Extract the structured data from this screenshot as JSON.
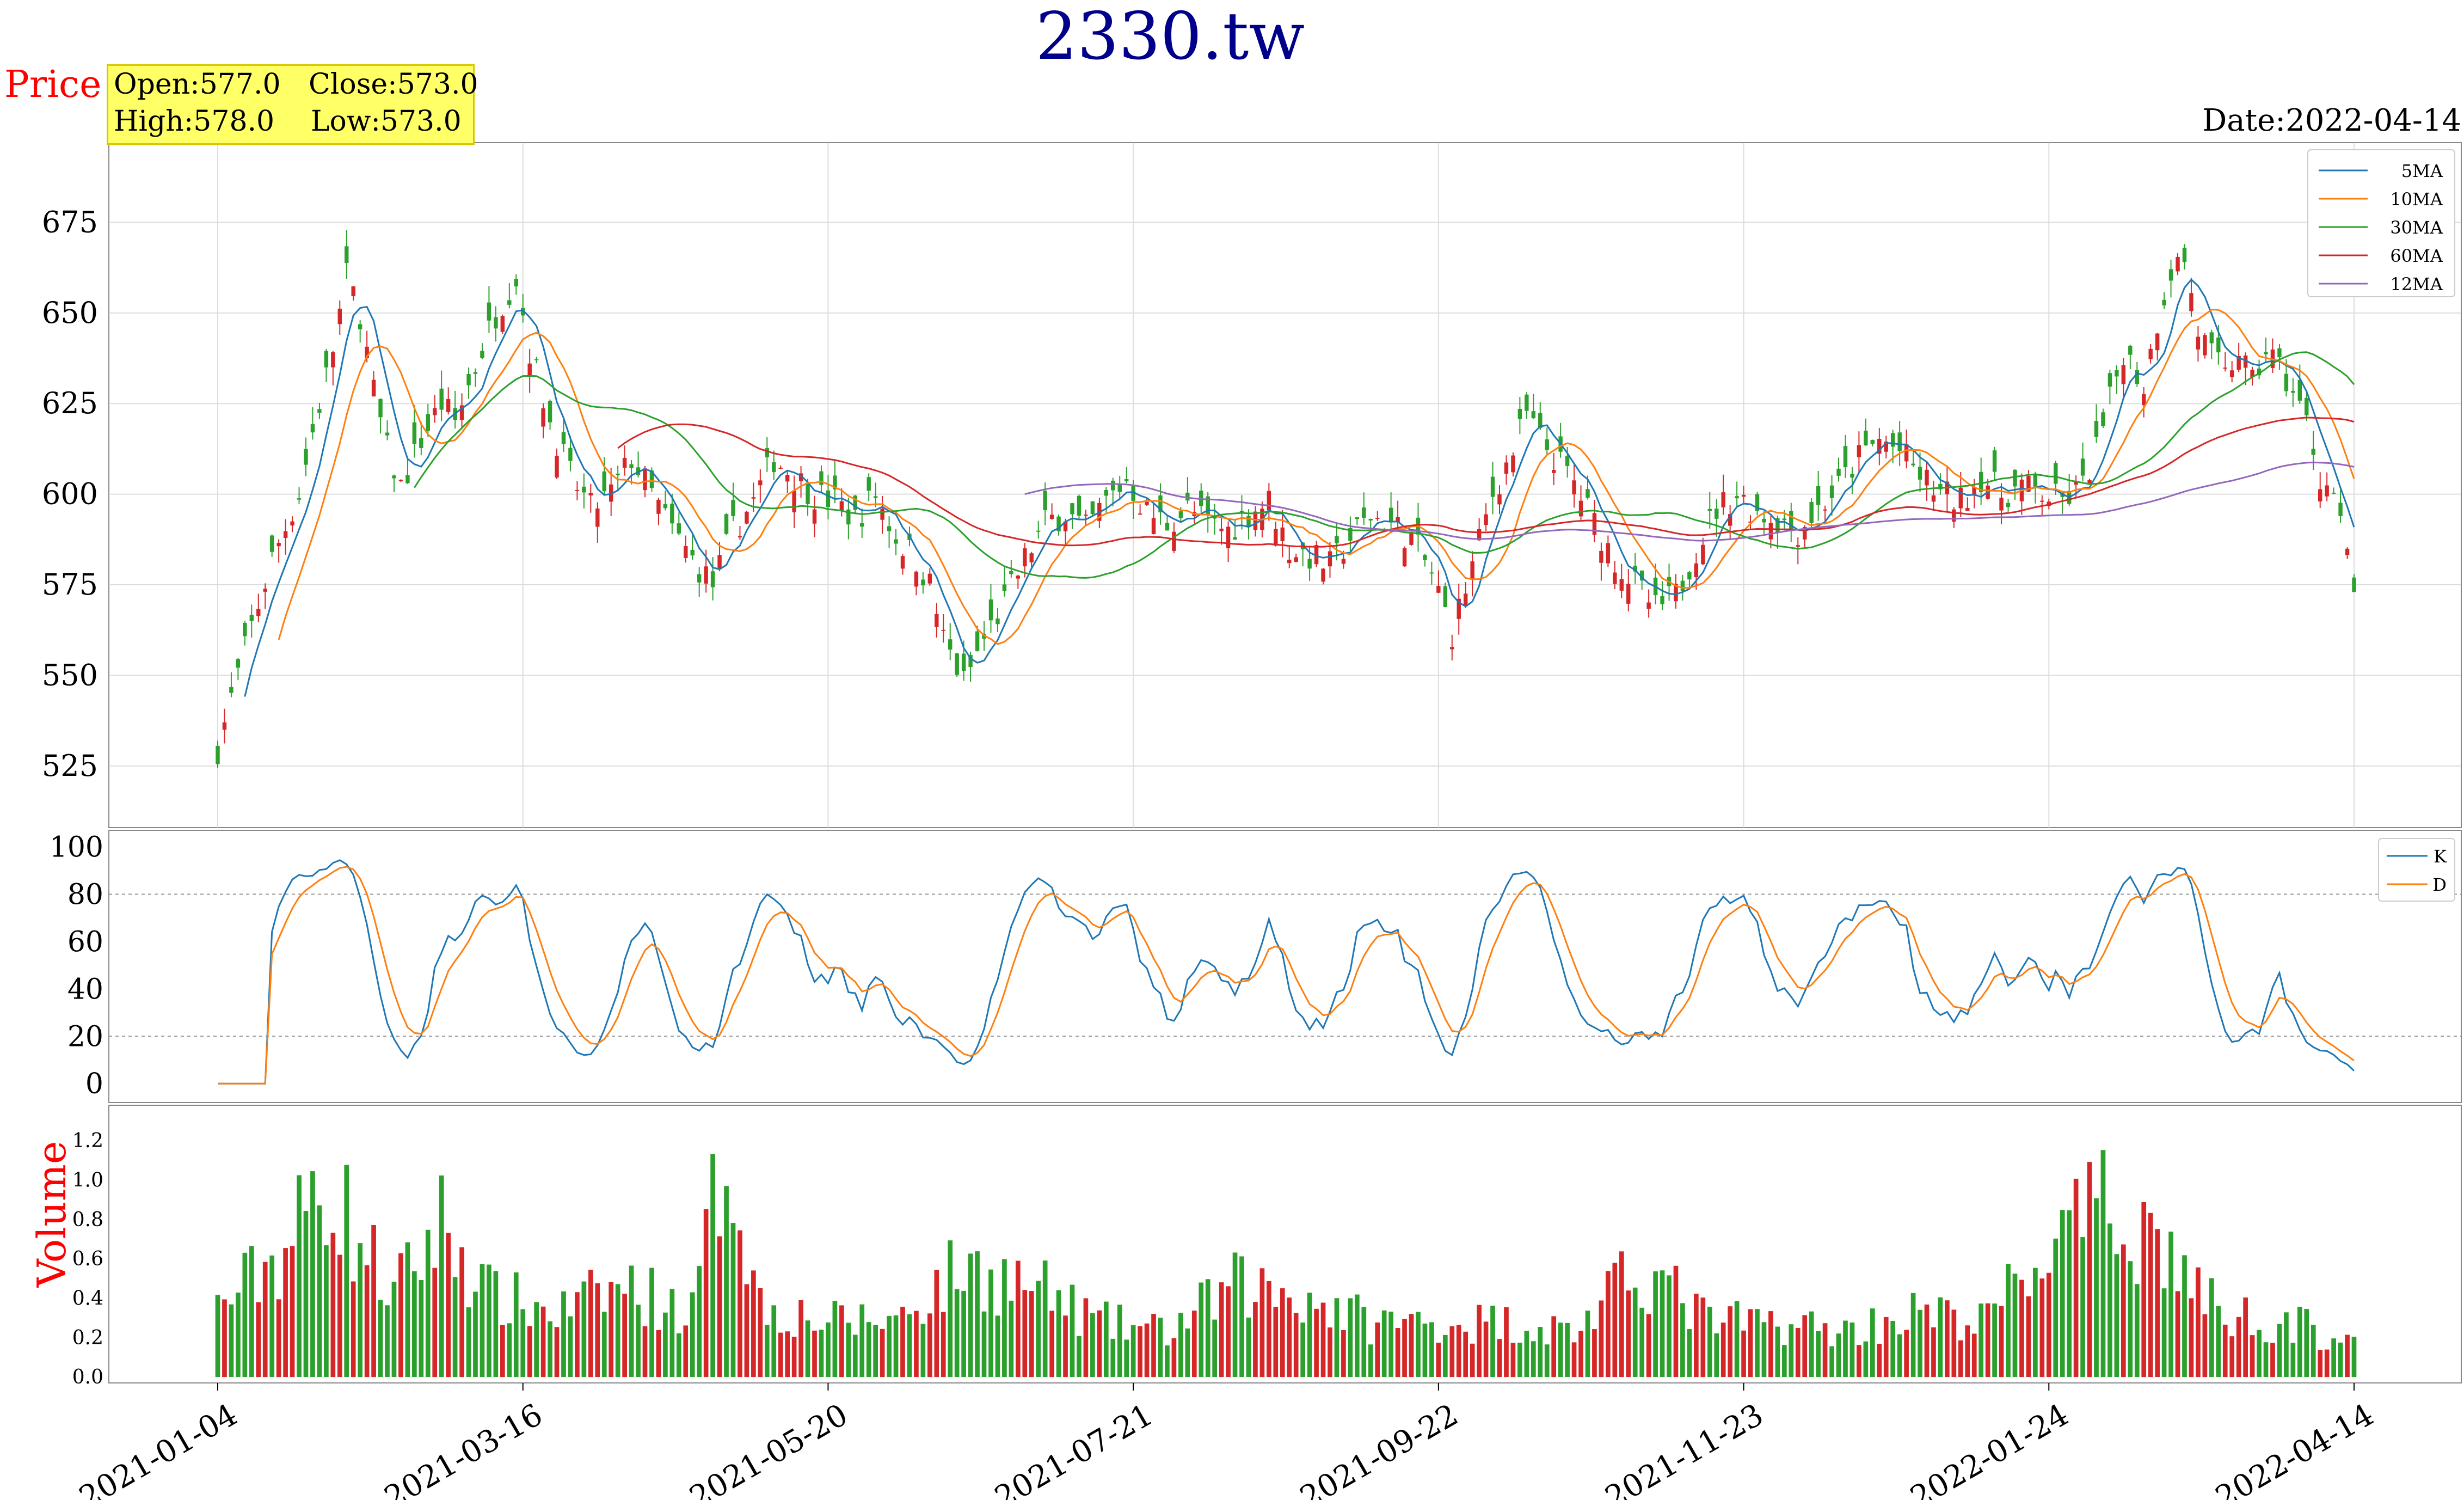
{
  "title": "2330.tw",
  "price_label": "Price",
  "volume_label": "Volume",
  "ohlc": {
    "open_label": "Open:577.0",
    "close_label": "Close:573.0",
    "high_label": "High:578.0",
    "low_label": "Low:573.0"
  },
  "date_label": "Date:2022-04-14",
  "colors": {
    "up": "#d62728",
    "down": "#2ca02c",
    "title": "#00008b",
    "axis_label": "#ff0000",
    "ma5": "#1f77b4",
    "ma10": "#ff7f0e",
    "ma30": "#2ca02c",
    "ma60": "#d62728",
    "ma120": "#9467bd",
    "k": "#1f77b4",
    "d": "#ff7f0e"
  },
  "chart_data": {
    "type": "line",
    "x_ticks": [
      "2021-01-04",
      "2021-03-16",
      "2021-05-20",
      "2021-07-21",
      "2021-09-22",
      "2021-11-23",
      "2022-01-24",
      "2022-04-14"
    ],
    "date_range": [
      "2021-01-04",
      "2022-04-14"
    ],
    "trading_days": 316,
    "price_panel": {
      "yticks": [
        525,
        550,
        575,
        600,
        625,
        650,
        675
      ],
      "ylim": [
        508,
        697
      ],
      "grid": true,
      "legend": [
        "5MA",
        "10MA",
        "30MA",
        "60MA",
        "12MA"
      ],
      "legend_position": "top-right",
      "close_anchors": [
        [
          0,
          530
        ],
        [
          4,
          557
        ],
        [
          8,
          582
        ],
        [
          12,
          600
        ],
        [
          14,
          617
        ],
        [
          17,
          640
        ],
        [
          19,
          660
        ],
        [
          21,
          650
        ],
        [
          23,
          628
        ],
        [
          25,
          612
        ],
        [
          27,
          602
        ],
        [
          30,
          615
        ],
        [
          33,
          625
        ],
        [
          35,
          620
        ],
        [
          38,
          635
        ],
        [
          41,
          650
        ],
        [
          44,
          660
        ],
        [
          46,
          640
        ],
        [
          49,
          620
        ],
        [
          52,
          605
        ],
        [
          55,
          596
        ],
        [
          58,
          600
        ],
        [
          61,
          610
        ],
        [
          64,
          600
        ],
        [
          67,
          590
        ],
        [
          70,
          582
        ],
        [
          73,
          575
        ],
        [
          76,
          590
        ],
        [
          79,
          598
        ],
        [
          82,
          610
        ],
        [
          85,
          605
        ],
        [
          88,
          600
        ],
        [
          91,
          598
        ],
        [
          94,
          593
        ],
        [
          97,
          600
        ],
        [
          100,
          588
        ],
        [
          103,
          582
        ],
        [
          105,
          575
        ],
        [
          107,
          560
        ],
        [
          110,
          548
        ],
        [
          113,
          560
        ],
        [
          116,
          570
        ],
        [
          119,
          582
        ],
        [
          122,
          592
        ],
        [
          125,
          595
        ],
        [
          128,
          590
        ],
        [
          131,
          598
        ],
        [
          134,
          604
        ],
        [
          137,
          595
        ],
        [
          140,
          592
        ],
        [
          143,
          596
        ],
        [
          146,
          592
        ],
        [
          149,
          590
        ],
        [
          152,
          595
        ],
        [
          155,
          598
        ],
        [
          158,
          585
        ],
        [
          161,
          583
        ],
        [
          164,
          580
        ],
        [
          167,
          588
        ],
        [
          170,
          594
        ],
        [
          173,
          592
        ],
        [
          176,
          588
        ],
        [
          179,
          578
        ],
        [
          182,
          562
        ],
        [
          185,
          580
        ],
        [
          188,
          600
        ],
        [
          191,
          612
        ],
        [
          193,
          622
        ],
        [
          195,
          615
        ],
        [
          198,
          608
        ],
        [
          200,
          603
        ],
        [
          203,
          592
        ],
        [
          206,
          582
        ],
        [
          209,
          575
        ],
        [
          212,
          568
        ],
        [
          215,
          572
        ],
        [
          218,
          585
        ],
        [
          221,
          596
        ],
        [
          224,
          600
        ],
        [
          227,
          595
        ],
        [
          230,
          593
        ],
        [
          233,
          590
        ],
        [
          236,
          596
        ],
        [
          239,
          602
        ],
        [
          242,
          610
        ],
        [
          245,
          615
        ],
        [
          248,
          612
        ],
        [
          251,
          605
        ],
        [
          254,
          600
        ],
        [
          257,
          598
        ],
        [
          260,
          605
        ],
        [
          263,
          600
        ],
        [
          266,
          602
        ],
        [
          269,
          600
        ],
        [
          272,
          598
        ],
        [
          275,
          602
        ],
        [
          278,
          618
        ],
        [
          281,
          640
        ],
        [
          284,
          630
        ],
        [
          286,
          648
        ],
        [
          288,
          662
        ],
        [
          290,
          665
        ],
        [
          292,
          645
        ],
        [
          294,
          638
        ],
        [
          296,
          632
        ],
        [
          298,
          640
        ],
        [
          300,
          630
        ],
        [
          302,
          640
        ],
        [
          304,
          635
        ],
        [
          306,
          628
        ],
        [
          308,
          620
        ],
        [
          310,
          605
        ],
        [
          312,
          600
        ],
        [
          315,
          573
        ]
      ],
      "volume_anchors": [
        [
          0,
          0.38
        ],
        [
          10,
          0.7
        ],
        [
          16,
          1.1
        ],
        [
          20,
          0.8
        ],
        [
          26,
          0.45
        ],
        [
          33,
          0.85
        ],
        [
          40,
          0.45
        ],
        [
          50,
          0.35
        ],
        [
          60,
          0.5
        ],
        [
          70,
          0.35
        ],
        [
          75,
          1.3
        ],
        [
          80,
          0.4
        ],
        [
          90,
          0.3
        ],
        [
          100,
          0.32
        ],
        [
          110,
          0.6
        ],
        [
          120,
          0.5
        ],
        [
          130,
          0.3
        ],
        [
          140,
          0.25
        ],
        [
          150,
          0.5
        ],
        [
          160,
          0.45
        ],
        [
          170,
          0.3
        ],
        [
          180,
          0.3
        ],
        [
          190,
          0.3
        ],
        [
          200,
          0.25
        ],
        [
          210,
          0.6
        ],
        [
          220,
          0.3
        ],
        [
          230,
          0.3
        ],
        [
          240,
          0.25
        ],
        [
          250,
          0.35
        ],
        [
          260,
          0.3
        ],
        [
          270,
          0.7
        ],
        [
          278,
          0.9
        ],
        [
          285,
          0.8
        ],
        [
          295,
          0.35
        ],
        [
          305,
          0.3
        ],
        [
          315,
          0.2
        ]
      ]
    },
    "kd_panel": {
      "yticks": [
        0,
        20,
        40,
        60,
        80,
        100
      ],
      "ylim": [
        -8,
        107
      ],
      "lines_at": [
        20,
        80
      ],
      "legend": [
        "K",
        "D"
      ],
      "legend_position": "top-right"
    },
    "volume_panel": {
      "yticks": [
        "0.0",
        "0.2",
        "0.4",
        "0.6",
        "0.8",
        "1.0",
        "1.2"
      ],
      "ylim": [
        -0.03,
        1.38
      ]
    }
  }
}
